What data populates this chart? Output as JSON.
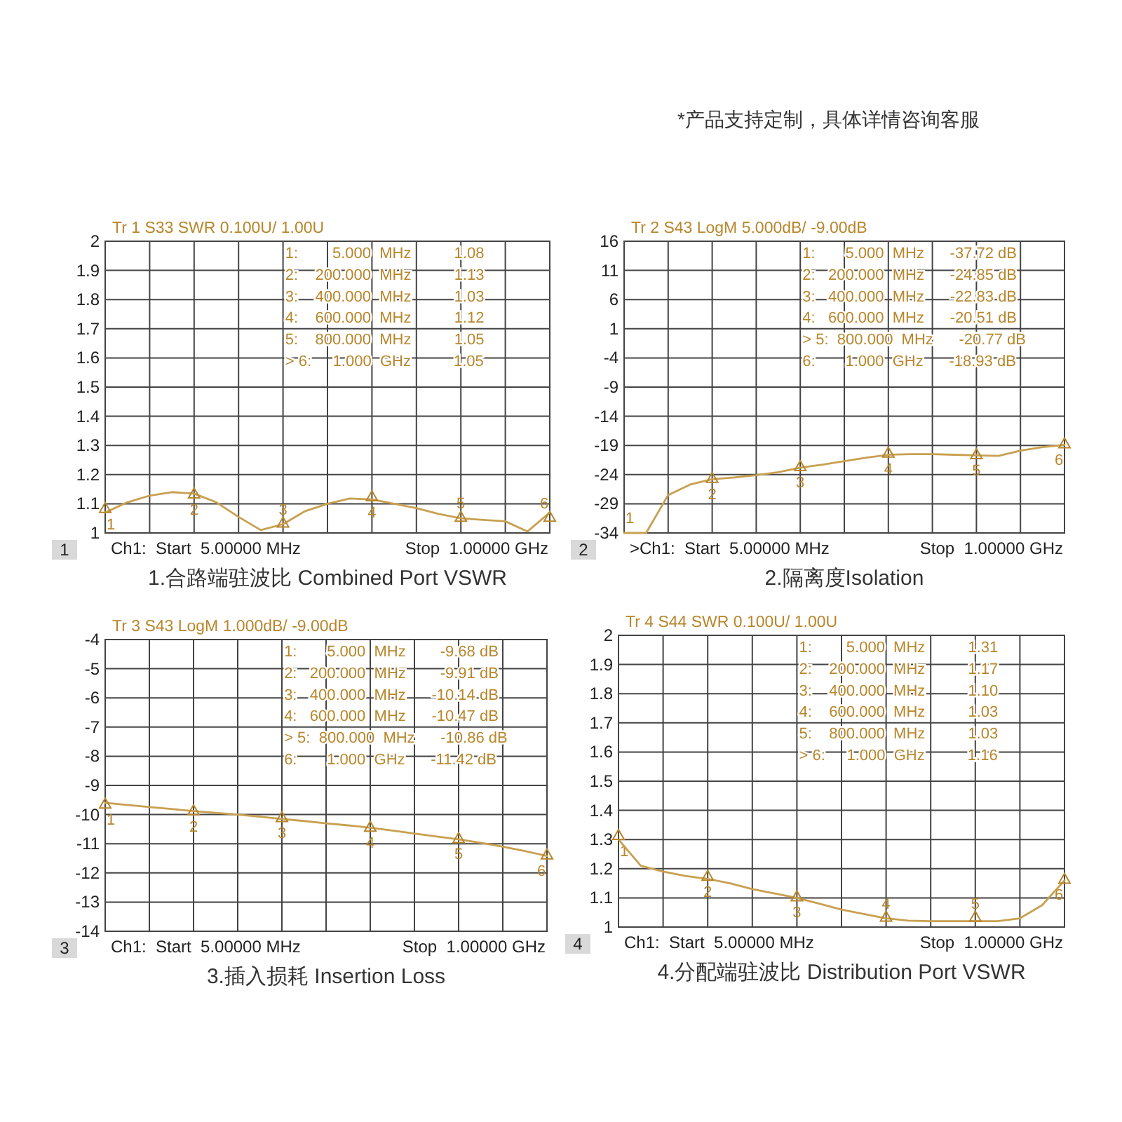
{
  "chart_data": [
    {
      "type": "other",
      "annotations": [
        "*产品支持定制，具体详情咨询客服"
      ]
    },
    {
      "type": "line",
      "title": "Tr 1 S33 SWR 0.100U/ 1.00U",
      "xlabel": "1.合路端驻波比 Combined Port VSWR",
      "categories": [
        null,
        null,
        null,
        null,
        null,
        null,
        null,
        null,
        null,
        null,
        null,
        null,
        null,
        null,
        null,
        null,
        null,
        null,
        null,
        null,
        null
      ],
      "ylim": [
        1,
        2
      ],
      "yticks": [
        1,
        1.1,
        1.2,
        1.3,
        1.4,
        1.5,
        1.6,
        1.7,
        1.8,
        1.9,
        2
      ],
      "tick_labels": "y",
      "grid": true,
      "series": [
        {
          "type": "line",
          "color": "#c8a050",
          "values": [
            1.07,
            1.105,
            1.128,
            1.14,
            1.135,
            1.105,
            1.055,
            1.01,
            1.03,
            1.075,
            1.1,
            1.118,
            1.115,
            1.1,
            1.085,
            1.065,
            1.05,
            1.045,
            1.04,
            1.005,
            1.07
          ]
        },
        {
          "type": "scatter",
          "marker": "triangle",
          "color": "#b8862b",
          "values": [
            1.08,
            null,
            null,
            null,
            1.13,
            null,
            null,
            null,
            1.03,
            null,
            null,
            null,
            1.12,
            null,
            null,
            null,
            1.05,
            null,
            null,
            null,
            1.05
          ]
        }
      ],
      "annotations": [
        "1",
        "Ch1:  Start  5.00000 MHz",
        "Stop  1.00000 GHz",
        "1:        5.000  MHz          1.08",
        "2:    200.000  MHz          1.13",
        "3:    400.000  MHz          1.03",
        "4:    600.000  MHz          1.12",
        "5:    800.000  MHz          1.05",
        "> 6:     1.000  GHz          1.05",
        "1",
        "2",
        "3",
        "4",
        "5",
        "6"
      ]
    },
    {
      "type": "line",
      "title": "Tr 2 S43 LogM 5.000dB/ -9.00dB",
      "xlabel": "2.隔离度Isolation",
      "categories": [
        null,
        null,
        null,
        null,
        null,
        null,
        null,
        null,
        null,
        null,
        null,
        null,
        null,
        null,
        null,
        null,
        null,
        null,
        null,
        null,
        null
      ],
      "ylim": [
        -34,
        16
      ],
      "yticks": [
        -34,
        -29,
        -24,
        -19,
        -14,
        -9,
        -4,
        1,
        6,
        11,
        16
      ],
      "tick_labels": "y",
      "grid": true,
      "series": [
        {
          "type": "line",
          "color": "#c8a050",
          "values": [
            -34,
            -34,
            -27.5,
            -25.7,
            -24.8,
            -24.5,
            -24.1,
            -23.6,
            -22.8,
            -22.3,
            -21.7,
            -21.1,
            -20.6,
            -20.5,
            -20.5,
            -20.6,
            -20.7,
            -20.8,
            -19.9,
            -19.3,
            -18.9
          ]
        },
        {
          "type": "scatter",
          "marker": "triangle",
          "color": "#b8862b",
          "values": [
            null,
            null,
            null,
            null,
            -24.85,
            null,
            null,
            null,
            -22.83,
            null,
            null,
            null,
            -20.51,
            null,
            null,
            null,
            -20.77,
            null,
            null,
            null,
            -18.93
          ]
        }
      ],
      "annotations": [
        "2",
        ">Ch1:  Start  5.00000 MHz",
        "Stop  1.00000 GHz",
        "1:       5.000  MHz      -37.72 dB",
        "2:   200.000  MHz      -24.85 dB",
        "3:   400.000  MHz      -22.83 dB",
        "4:   600.000  MHz      -20.51 dB",
        "> 5:  800.000  MHz      -20.77 dB",
        "6:       1.000  GHz      -18.93 dB",
        "1",
        "2",
        "3",
        "4",
        "5",
        "6"
      ]
    },
    {
      "type": "line",
      "title": "Tr 3 S43 LogM 1.000dB/ -9.00dB",
      "xlabel": "3.插入损耗 Insertion Loss",
      "categories": [
        null,
        null,
        null,
        null,
        null,
        null,
        null,
        null,
        null,
        null,
        null,
        null,
        null,
        null,
        null,
        null,
        null,
        null,
        null,
        null,
        null
      ],
      "ylim": [
        -14,
        -4
      ],
      "yticks": [
        -14,
        -13,
        -12,
        -11,
        -10,
        -9,
        -8,
        -7,
        -6,
        -5,
        -4
      ],
      "tick_labels": "y",
      "grid": true,
      "series": [
        {
          "type": "line",
          "color": "#c8a050",
          "values": [
            -9.6,
            -9.67,
            -9.74,
            -9.81,
            -9.88,
            -9.94,
            -10.0,
            -10.07,
            -10.15,
            -10.22,
            -10.3,
            -10.37,
            -10.45,
            -10.55,
            -10.65,
            -10.75,
            -10.85,
            -10.97,
            -11.1,
            -11.25,
            -11.42
          ]
        },
        {
          "type": "scatter",
          "marker": "triangle",
          "color": "#b8862b",
          "values": [
            -9.68,
            null,
            null,
            null,
            -9.91,
            null,
            null,
            null,
            -10.14,
            null,
            null,
            null,
            -10.47,
            null,
            null,
            null,
            -10.86,
            null,
            null,
            null,
            -11.42
          ]
        }
      ],
      "annotations": [
        "3",
        "Ch1:  Start  5.00000 MHz",
        "Stop  1.00000 GHz",
        "1:       5.000  MHz        -9.68 dB",
        "2:   200.000  MHz        -9.91 dB",
        "3:   400.000  MHz      -10.14 dB",
        "4:   600.000  MHz      -10.47 dB",
        "> 5:  800.000  MHz      -10.86 dB",
        "6:       1.000  GHz      -11.42 dB",
        "1",
        "2",
        "3",
        "4",
        "5",
        "6"
      ]
    },
    {
      "type": "line",
      "title": "Tr 4 S44 SWR 0.100U/ 1.00U",
      "xlabel": "4.分配端驻波比 Distribution  Port VSWR",
      "categories": [
        null,
        null,
        null,
        null,
        null,
        null,
        null,
        null,
        null,
        null,
        null,
        null,
        null,
        null,
        null,
        null,
        null,
        null,
        null,
        null,
        null
      ],
      "ylim": [
        1,
        2
      ],
      "yticks": [
        1,
        1.1,
        1.2,
        1.3,
        1.4,
        1.5,
        1.6,
        1.7,
        1.8,
        1.9,
        2
      ],
      "tick_labels": "y",
      "grid": true,
      "series": [
        {
          "type": "line",
          "color": "#c8a050",
          "values": [
            1.3,
            1.21,
            1.19,
            1.175,
            1.165,
            1.15,
            1.13,
            1.115,
            1.1,
            1.08,
            1.06,
            1.045,
            1.03,
            1.022,
            1.02,
            1.02,
            1.02,
            1.02,
            1.03,
            1.075,
            1.16
          ]
        },
        {
          "type": "scatter",
          "marker": "triangle",
          "color": "#b8862b",
          "values": [
            1.31,
            null,
            null,
            null,
            1.17,
            null,
            null,
            null,
            1.1,
            null,
            null,
            null,
            1.03,
            null,
            null,
            null,
            1.03,
            null,
            null,
            null,
            1.16
          ]
        }
      ],
      "annotations": [
        "4",
        "Ch1:  Start  5.00000 MHz",
        "Stop  1.00000 GHz",
        "1:        5.000  MHz          1.31",
        "2:    200.000  MHz          1.17",
        "3:    400.000  MHz          1.10",
        "4:    600.000  MHz          1.03",
        "5:    800.000  MHz          1.03",
        "> 6:     1.000  GHz          1.16",
        "1",
        "2",
        "3",
        "4",
        "5",
        "6"
      ]
    }
  ]
}
